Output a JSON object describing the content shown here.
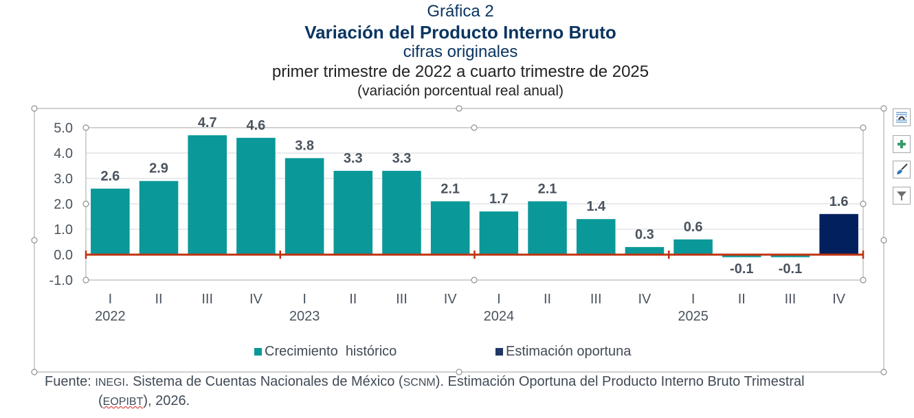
{
  "header": {
    "figure_number": "Gráfica 2",
    "title": "Variación del Producto Interno Bruto",
    "subtitle1": "cifras originales",
    "subtitle2": "primer trimestre de 2022 a cuarto trimestre de 2025",
    "subtitle3": "(variación porcentual real anual)"
  },
  "side_toolbar": [
    {
      "name": "chart-elements-layout-icon"
    },
    {
      "name": "add-chart-element-icon"
    },
    {
      "name": "chart-styles-brush-icon"
    },
    {
      "name": "chart-filters-icon"
    }
  ],
  "colors": {
    "historico": "#0a9899",
    "oportuna": "#02205e",
    "zero_line": "#c0320f",
    "grid": "#d0d5db",
    "title": "#0b3561",
    "label": "#4a535e"
  },
  "chart_data": {
    "type": "bar",
    "title": "Variación del Producto Interno Bruto",
    "subtitle": "cifras originales, primer trimestre de 2022 a cuarto trimestre de 2025 (variación porcentual real anual)",
    "xlabel": "",
    "ylabel": "",
    "ylim": [
      -1.0,
      5.0
    ],
    "yticks": [
      "5.0",
      "4.0",
      "3.0",
      "2.0",
      "1.0",
      "0.0",
      "-1.0"
    ],
    "ytick_values": [
      5,
      4,
      3,
      2,
      1,
      0,
      -1
    ],
    "grid": true,
    "legend_position": "bottom",
    "categories": [
      "I",
      "II",
      "III",
      "IV",
      "I",
      "II",
      "III",
      "IV",
      "I",
      "II",
      "III",
      "IV",
      "I",
      "II",
      "III",
      "IV"
    ],
    "years": [
      {
        "label": "2022",
        "start_index": 0
      },
      {
        "label": "2023",
        "start_index": 4
      },
      {
        "label": "2024",
        "start_index": 8
      },
      {
        "label": "2025",
        "start_index": 12
      }
    ],
    "values": [
      2.6,
      2.9,
      4.7,
      4.6,
      3.8,
      3.3,
      3.3,
      2.1,
      1.7,
      2.1,
      1.4,
      0.3,
      0.6,
      -0.1,
      -0.1,
      1.6
    ],
    "series": [
      {
        "name": "Crecimiento  histórico",
        "indices": [
          0,
          1,
          2,
          3,
          4,
          5,
          6,
          7,
          8,
          9,
          10,
          11,
          12,
          13,
          14
        ]
      },
      {
        "name": "Estimación oportuna",
        "indices": [
          15
        ]
      }
    ],
    "data_labels": [
      "2.6",
      "2.9",
      "4.7",
      "4.6",
      "3.8",
      "3.3",
      "3.3",
      "2.1",
      "1.7",
      "2.1",
      "1.4",
      "0.3",
      "0.6",
      "-0.1",
      "-0.1",
      "1.6"
    ]
  },
  "legend": {
    "historico": "Crecimiento  histórico",
    "oportuna": "Estimación oportuna"
  },
  "footer": {
    "prefix": "Fuente: ",
    "org": "INEGI",
    "text1": ". Sistema de Cuentas Nacionales de México (",
    "abbr1": "SCNM",
    "text2": "). Estimación Oportuna del Producto Interno Bruto Trimestral",
    "open": "(",
    "abbr2": "EOPIBT",
    "text3": "), 2026."
  }
}
